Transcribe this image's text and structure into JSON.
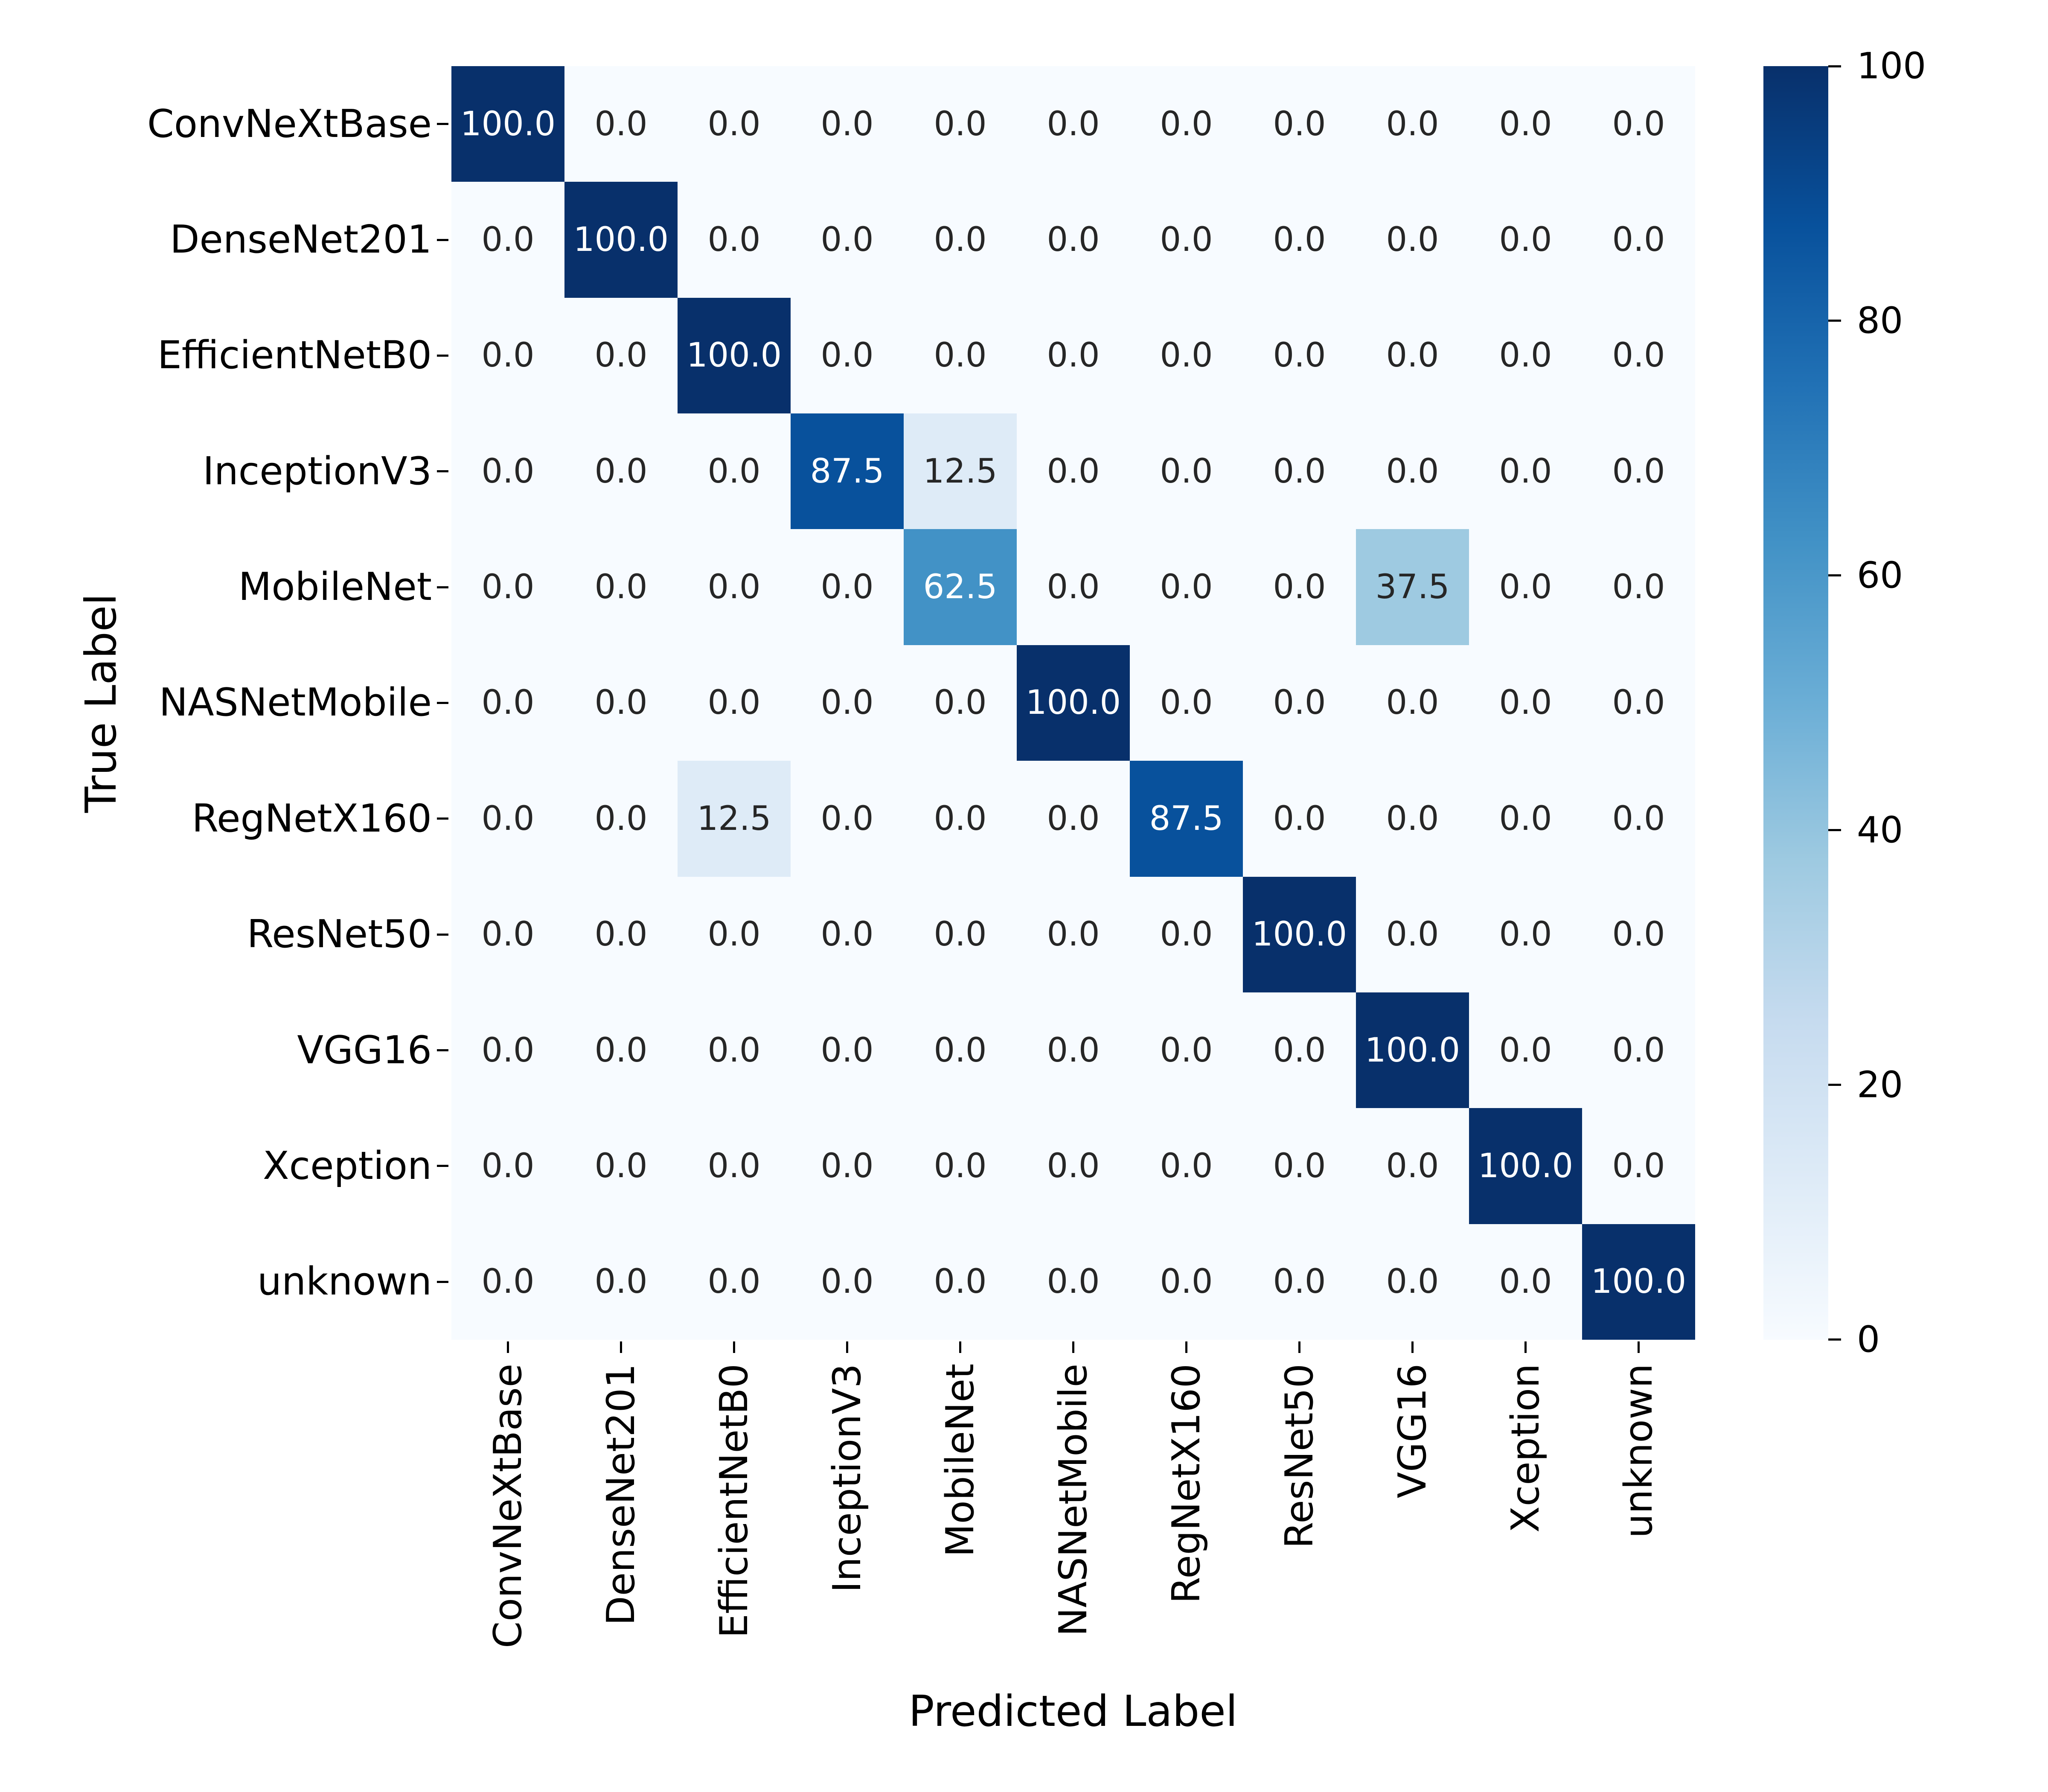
{
  "chart_data": {
    "type": "heatmap",
    "title": "",
    "xlabel": "Predicted Label",
    "ylabel": "True Label",
    "categories": [
      "ConvNeXtBase",
      "DenseNet201",
      "EfficientNetB0",
      "InceptionV3",
      "MobileNet",
      "NASNetMobile",
      "RegNetX160",
      "ResNet50",
      "VGG16",
      "Xception",
      "unknown"
    ],
    "matrix": [
      [
        100.0,
        0.0,
        0.0,
        0.0,
        0.0,
        0.0,
        0.0,
        0.0,
        0.0,
        0.0,
        0.0
      ],
      [
        0.0,
        100.0,
        0.0,
        0.0,
        0.0,
        0.0,
        0.0,
        0.0,
        0.0,
        0.0,
        0.0
      ],
      [
        0.0,
        0.0,
        100.0,
        0.0,
        0.0,
        0.0,
        0.0,
        0.0,
        0.0,
        0.0,
        0.0
      ],
      [
        0.0,
        0.0,
        0.0,
        87.5,
        12.5,
        0.0,
        0.0,
        0.0,
        0.0,
        0.0,
        0.0
      ],
      [
        0.0,
        0.0,
        0.0,
        0.0,
        62.5,
        0.0,
        0.0,
        0.0,
        37.5,
        0.0,
        0.0
      ],
      [
        0.0,
        0.0,
        0.0,
        0.0,
        0.0,
        100.0,
        0.0,
        0.0,
        0.0,
        0.0,
        0.0
      ],
      [
        0.0,
        0.0,
        12.5,
        0.0,
        0.0,
        0.0,
        87.5,
        0.0,
        0.0,
        0.0,
        0.0
      ],
      [
        0.0,
        0.0,
        0.0,
        0.0,
        0.0,
        0.0,
        0.0,
        100.0,
        0.0,
        0.0,
        0.0
      ],
      [
        0.0,
        0.0,
        0.0,
        0.0,
        0.0,
        0.0,
        0.0,
        0.0,
        100.0,
        0.0,
        0.0
      ],
      [
        0.0,
        0.0,
        0.0,
        0.0,
        0.0,
        0.0,
        0.0,
        0.0,
        0.0,
        100.0,
        0.0
      ],
      [
        0.0,
        0.0,
        0.0,
        0.0,
        0.0,
        0.0,
        0.0,
        0.0,
        0.0,
        0.0,
        100.0
      ]
    ],
    "value_format": ".1f",
    "colormap": "Blues",
    "vmin": 0,
    "vmax": 100,
    "colorbar_ticks": [
      0,
      20,
      40,
      60,
      80,
      100
    ],
    "legend_position": "right-colorbar",
    "grid": "off"
  },
  "colors": {
    "background": "#ffffff",
    "annotation_dark": "#262626",
    "annotation_light": "#ffffff",
    "axis_text": "#000000",
    "tick_mark": "#000000",
    "blues_stops": [
      "#f7fbff",
      "#deebf7",
      "#c6dbef",
      "#9ecae1",
      "#6baed6",
      "#4292c6",
      "#2171b5",
      "#08519c",
      "#08306b"
    ]
  }
}
